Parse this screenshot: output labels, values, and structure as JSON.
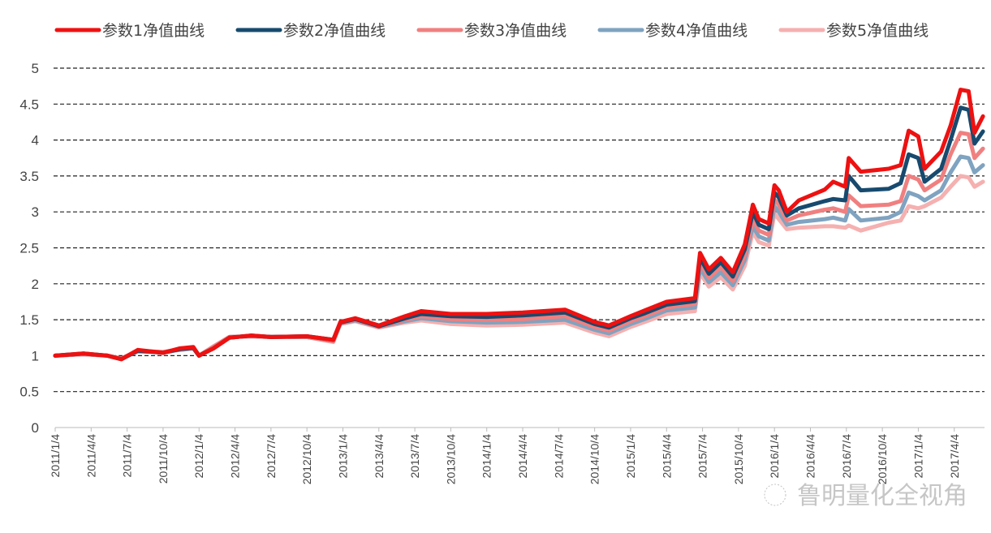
{
  "chart_data": {
    "type": "line",
    "title": "",
    "xlabel": "",
    "ylabel": "",
    "ylim": [
      0,
      5
    ],
    "yticks": [
      "0",
      "0.5",
      "1",
      "1.5",
      "2",
      "2.5",
      "3",
      "3.5",
      "4",
      "4.5",
      "5"
    ],
    "grid": "horizontal dashed",
    "legend_position": "top",
    "x_ticks": [
      "2011/1/4",
      "2011/4/4",
      "2011/7/4",
      "2011/10/4",
      "2012/1/4",
      "2012/4/4",
      "2012/7/4",
      "2012/10/4",
      "2013/1/4",
      "2013/4/4",
      "2013/7/4",
      "2013/10/4",
      "2014/1/4",
      "2014/4/4",
      "2014/7/4",
      "2014/10/4",
      "2015/1/4",
      "2015/4/4",
      "2015/7/4",
      "2015/10/4",
      "2016/1/4",
      "2016/4/4",
      "2016/7/4",
      "2016/10/4",
      "2017/1/4",
      "2017/4/4"
    ],
    "x": [
      "2011/01/04",
      "2011/03/15",
      "2011/05/15",
      "2011/06/20",
      "2011/08/01",
      "2011/10/04",
      "2011/11/15",
      "2011/12/20",
      "2012/01/04",
      "2012/02/10",
      "2012/03/20",
      "2012/05/15",
      "2012/07/04",
      "2012/10/04",
      "2012/12/10",
      "2012/12/28",
      "2013/02/05",
      "2013/04/04",
      "2013/06/10",
      "2013/07/20",
      "2013/10/04",
      "2014/01/04",
      "2014/04/04",
      "2014/07/20",
      "2014/10/04",
      "2014/11/10",
      "2015/01/04",
      "2015/02/10",
      "2015/04/04",
      "2015/06/15",
      "2015/06/28",
      "2015/07/20",
      "2015/08/20",
      "2015/09/20",
      "2015/10/20",
      "2015/11/10",
      "2015/11/25",
      "2015/12/20",
      "2016/01/04",
      "2016/01/15",
      "2016/02/05",
      "2016/03/05",
      "2016/05/10",
      "2016/06/01",
      "2016/07/01",
      "2016/07/10",
      "2016/08/10",
      "2016/10/20",
      "2016/11/20",
      "2016/12/10",
      "2017/01/04",
      "2017/01/20",
      "2017/03/01",
      "2017/03/25",
      "2017/04/20",
      "2017/05/10",
      "2017/05/25",
      "2017/06/16"
    ],
    "series": [
      {
        "name": "参数1净值曲线",
        "color": "#ee1111",
        "values": [
          1,
          1.03,
          1.0,
          0.95,
          1.08,
          1.04,
          1.1,
          1.12,
          1.0,
          1.1,
          1.25,
          1.28,
          1.26,
          1.27,
          1.22,
          1.47,
          1.52,
          1.42,
          1.55,
          1.62,
          1.58,
          1.58,
          1.6,
          1.64,
          1.47,
          1.42,
          1.55,
          1.63,
          1.75,
          1.8,
          2.43,
          2.2,
          2.36,
          2.16,
          2.55,
          3.1,
          2.9,
          2.84,
          3.37,
          3.3,
          3.0,
          3.16,
          3.31,
          3.42,
          3.35,
          3.75,
          3.56,
          3.6,
          3.65,
          4.13,
          4.05,
          3.6,
          3.84,
          4.2,
          4.7,
          4.68,
          4.1,
          4.33
        ]
      },
      {
        "name": "参数2净值曲线",
        "color": "#174a6e",
        "values": [
          1,
          1.03,
          1.0,
          0.95,
          1.07,
          1.04,
          1.09,
          1.11,
          1.0,
          1.1,
          1.25,
          1.28,
          1.26,
          1.27,
          1.22,
          1.46,
          1.51,
          1.41,
          1.52,
          1.58,
          1.55,
          1.54,
          1.56,
          1.6,
          1.44,
          1.39,
          1.52,
          1.59,
          1.71,
          1.76,
          2.36,
          2.14,
          2.3,
          2.1,
          2.48,
          3.0,
          2.82,
          2.76,
          3.27,
          3.2,
          2.95,
          3.05,
          3.15,
          3.18,
          3.16,
          3.5,
          3.3,
          3.32,
          3.4,
          3.8,
          3.75,
          3.42,
          3.6,
          4.0,
          4.45,
          4.42,
          3.95,
          4.12
        ]
      },
      {
        "name": "参数3净值曲线",
        "color": "#f08080",
        "values": [
          1,
          1.02,
          1.0,
          0.96,
          1.07,
          1.05,
          1.09,
          1.1,
          1.0,
          1.12,
          1.26,
          1.27,
          1.26,
          1.26,
          1.2,
          1.45,
          1.5,
          1.4,
          1.5,
          1.55,
          1.51,
          1.5,
          1.51,
          1.55,
          1.4,
          1.35,
          1.48,
          1.55,
          1.67,
          1.72,
          2.3,
          2.08,
          2.23,
          2.04,
          2.4,
          2.9,
          2.74,
          2.68,
          3.17,
          3.1,
          2.88,
          2.95,
          3.03,
          3.05,
          3.0,
          3.23,
          3.08,
          3.1,
          3.15,
          3.5,
          3.45,
          3.3,
          3.45,
          3.8,
          4.1,
          4.08,
          3.75,
          3.88
        ]
      },
      {
        "name": "参数4净值曲线",
        "color": "#7fa3c0",
        "values": [
          1,
          1.02,
          1.0,
          0.96,
          1.06,
          1.05,
          1.08,
          1.1,
          1.0,
          1.12,
          1.26,
          1.27,
          1.26,
          1.26,
          1.2,
          1.45,
          1.49,
          1.4,
          1.48,
          1.52,
          1.48,
          1.46,
          1.47,
          1.5,
          1.36,
          1.31,
          1.44,
          1.51,
          1.63,
          1.67,
          2.22,
          2.02,
          2.16,
          1.98,
          2.33,
          2.8,
          2.66,
          2.6,
          3.08,
          3.0,
          2.82,
          2.86,
          2.9,
          2.92,
          2.88,
          3.04,
          2.88,
          2.92,
          3.0,
          3.27,
          3.22,
          3.16,
          3.3,
          3.55,
          3.77,
          3.75,
          3.55,
          3.65
        ]
      },
      {
        "name": "参数5净值曲线",
        "color": "#f5b0b0",
        "values": [
          1,
          1.02,
          1.0,
          0.96,
          1.06,
          1.05,
          1.08,
          1.1,
          1.0,
          1.13,
          1.26,
          1.27,
          1.26,
          1.26,
          1.19,
          1.44,
          1.48,
          1.39,
          1.46,
          1.49,
          1.44,
          1.42,
          1.43,
          1.46,
          1.32,
          1.27,
          1.4,
          1.47,
          1.58,
          1.62,
          2.15,
          1.96,
          2.09,
          1.92,
          2.25,
          2.72,
          2.58,
          2.53,
          2.98,
          2.9,
          2.76,
          2.78,
          2.8,
          2.8,
          2.78,
          2.81,
          2.74,
          2.85,
          2.88,
          3.08,
          3.05,
          3.08,
          3.2,
          3.35,
          3.5,
          3.48,
          3.35,
          3.42
        ]
      }
    ]
  },
  "watermark": "鲁明量化全视角"
}
